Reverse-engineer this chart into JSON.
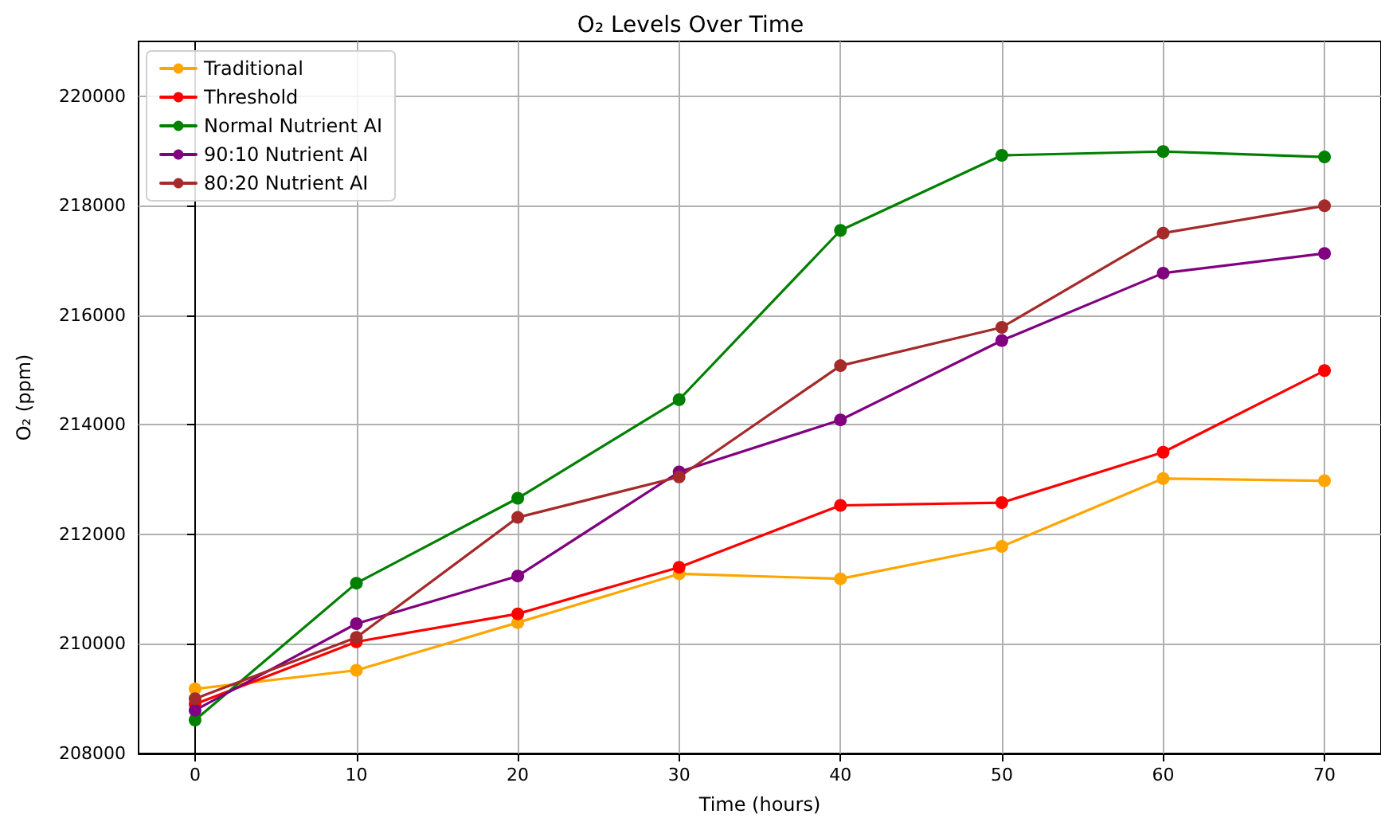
{
  "chart_data": {
    "type": "line",
    "title": "O₂ Levels Over Time",
    "xlabel": "Time (hours)",
    "ylabel": "O₂ (ppm)",
    "x": [
      0,
      10,
      20,
      30,
      40,
      50,
      60,
      70
    ],
    "series": [
      {
        "name": "Traditional",
        "color": "#ffa500",
        "values": [
          209180,
          209520,
          210390,
          211280,
          211190,
          211780,
          213020,
          212980
        ]
      },
      {
        "name": "Threshold",
        "color": "#ff0000",
        "values": [
          208900,
          210040,
          210550,
          211400,
          212530,
          212580,
          213500,
          214990
        ]
      },
      {
        "name": "Normal Nutrient AI",
        "color": "#008000",
        "values": [
          208610,
          211110,
          212660,
          214460,
          217550,
          218920,
          218990,
          218890
        ]
      },
      {
        "name": "90:10 Nutrient AI",
        "color": "#800080",
        "values": [
          208790,
          210370,
          211240,
          213140,
          214090,
          215540,
          216770,
          217130
        ]
      },
      {
        "name": "80:20 Nutrient AI",
        "color": "#a52a2a",
        "values": [
          209000,
          210120,
          212310,
          213050,
          215080,
          215780,
          217500,
          218000
        ]
      }
    ],
    "xlim": [
      -3.5,
      73.5
    ],
    "xticks": [
      0,
      10,
      20,
      30,
      40,
      50,
      60,
      70
    ],
    "ylim": [
      208000,
      221000
    ],
    "yticks": [
      208000,
      210000,
      212000,
      214000,
      216000,
      218000,
      220000
    ],
    "grid": true,
    "legend": "top left",
    "marker": "circle",
    "line_style": "solid"
  }
}
